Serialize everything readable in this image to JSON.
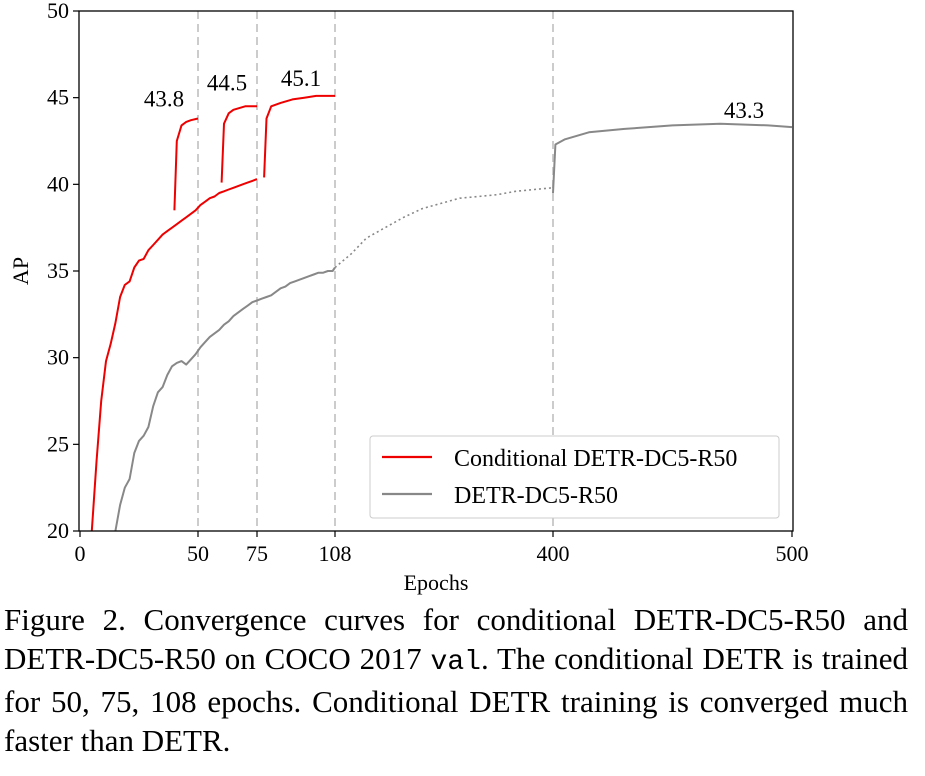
{
  "chart_data": {
    "type": "line",
    "xlabel": "Epochs",
    "ylabel": "AP",
    "xticks": [
      0,
      50,
      75,
      108,
      400,
      500
    ],
    "yticks": [
      20,
      25,
      30,
      35,
      40,
      45,
      50
    ],
    "xlim": [
      0,
      500
    ],
    "ylim": [
      20,
      50
    ],
    "x_scale": "piecewise linear (0-108 expanded, 108-500 compressed)",
    "grid": false,
    "vertical_dashed_lines_at": [
      50,
      75,
      108,
      400
    ],
    "legend_position": "lower-right",
    "series": [
      {
        "name": "Conditional DETR-DC5-R50",
        "color": "#ee0000",
        "segments": [
          {
            "points": [
              [
                5,
                20
              ],
              [
                7,
                24
              ],
              [
                9,
                27.5
              ],
              [
                11,
                29.8
              ],
              [
                13,
                30.8
              ],
              [
                15,
                32
              ],
              [
                17,
                33.5
              ],
              [
                19,
                34.2
              ],
              [
                21,
                34.4
              ],
              [
                23,
                35.2
              ],
              [
                25,
                35.6
              ],
              [
                27,
                35.7
              ],
              [
                29,
                36.2
              ],
              [
                31,
                36.5
              ],
              [
                33,
                36.8
              ],
              [
                35,
                37.1
              ],
              [
                37,
                37.3
              ],
              [
                39,
                37.5
              ],
              [
                41,
                37.7
              ],
              [
                43,
                37.9
              ],
              [
                45,
                38.1
              ],
              [
                47,
                38.3
              ],
              [
                49,
                38.5
              ],
              [
                51,
                38.8
              ],
              [
                53,
                39
              ],
              [
                55,
                39.2
              ],
              [
                57,
                39.3
              ],
              [
                59,
                39.5
              ],
              [
                61,
                39.6
              ],
              [
                63,
                39.7
              ],
              [
                65,
                39.8
              ],
              [
                67,
                39.9
              ],
              [
                69,
                40
              ],
              [
                71,
                40.1
              ],
              [
                73,
                40.2
              ],
              [
                75,
                40.3
              ]
            ]
          },
          {
            "points": [
              [
                40,
                38.5
              ],
              [
                41,
                42.5
              ],
              [
                43,
                43.4
              ],
              [
                45,
                43.6
              ],
              [
                47,
                43.7
              ],
              [
                50,
                43.8
              ]
            ]
          },
          {
            "points": [
              [
                60,
                40.1
              ],
              [
                61,
                43.5
              ],
              [
                63,
                44.1
              ],
              [
                65,
                44.3
              ],
              [
                70,
                44.5
              ],
              [
                75,
                44.5
              ]
            ]
          },
          {
            "points": [
              [
                78,
                40.4
              ],
              [
                79,
                43.8
              ],
              [
                81,
                44.5
              ],
              [
                85,
                44.7
              ],
              [
                90,
                44.9
              ],
              [
                95,
                45
              ],
              [
                100,
                45.1
              ],
              [
                108,
                45.1
              ]
            ]
          }
        ]
      },
      {
        "name": "DETR-DC5-R50",
        "color": "#888888",
        "segments": [
          {
            "points": [
              [
                15,
                20
              ],
              [
                17,
                21.5
              ],
              [
                19,
                22.5
              ],
              [
                21,
                23
              ],
              [
                23,
                24.5
              ],
              [
                25,
                25.2
              ],
              [
                27,
                25.5
              ],
              [
                29,
                26
              ],
              [
                31,
                27.2
              ],
              [
                33,
                28
              ],
              [
                35,
                28.3
              ],
              [
                37,
                29
              ],
              [
                39,
                29.5
              ],
              [
                41,
                29.7
              ],
              [
                43,
                29.8
              ],
              [
                45,
                29.6
              ],
              [
                47,
                29.9
              ],
              [
                49,
                30.2
              ],
              [
                51,
                30.6
              ],
              [
                53,
                30.9
              ],
              [
                55,
                31.2
              ],
              [
                57,
                31.4
              ],
              [
                59,
                31.6
              ],
              [
                61,
                31.9
              ],
              [
                63,
                32.1
              ],
              [
                65,
                32.4
              ],
              [
                67,
                32.6
              ],
              [
                69,
                32.8
              ],
              [
                71,
                33
              ],
              [
                73,
                33.2
              ],
              [
                75,
                33.3
              ],
              [
                77,
                33.4
              ],
              [
                79,
                33.5
              ],
              [
                81,
                33.6
              ],
              [
                83,
                33.8
              ],
              [
                85,
                34
              ],
              [
                87,
                34.1
              ],
              [
                89,
                34.3
              ],
              [
                91,
                34.4
              ],
              [
                93,
                34.5
              ],
              [
                95,
                34.6
              ],
              [
                97,
                34.7
              ],
              [
                99,
                34.8
              ],
              [
                101,
                34.9
              ],
              [
                103,
                34.9
              ],
              [
                105,
                35
              ],
              [
                107,
                35
              ],
              [
                108,
                35.2
              ]
            ]
          },
          {
            "points": [
              [
                108,
                35.2
              ],
              [
                130,
                36
              ],
              [
                150,
                36.9
              ],
              [
                175,
                37.5
              ],
              [
                200,
                38.1
              ],
              [
                225,
                38.6
              ],
              [
                250,
                38.9
              ],
              [
                275,
                39.2
              ],
              [
                300,
                39.3
              ],
              [
                325,
                39.4
              ],
              [
                350,
                39.6
              ],
              [
                375,
                39.7
              ],
              [
                399,
                39.8
              ]
            ],
            "style": "dotted"
          },
          {
            "points": [
              [
                400,
                39.5
              ],
              [
                401,
                42.3
              ],
              [
                405,
                42.6
              ],
              [
                415,
                43
              ],
              [
                430,
                43.2
              ],
              [
                450,
                43.4
              ],
              [
                470,
                43.5
              ],
              [
                490,
                43.4
              ],
              [
                500,
                43.3
              ]
            ]
          }
        ]
      }
    ],
    "annotations": [
      {
        "text": "43.8",
        "x": 50,
        "y": 43.8
      },
      {
        "text": "44.5",
        "x": 75,
        "y": 44.5
      },
      {
        "text": "45.1",
        "x": 108,
        "y": 45.1
      },
      {
        "text": "43.3",
        "x": 500,
        "y": 43.3
      }
    ]
  },
  "caption": {
    "p1": "Figure 2. Convergence curves for conditional DETR-DC5-R50 and DETR-DC5-R50 on COCO 2017 ",
    "code": "val",
    "p2": ". The conditional DETR is trained for 50, 75, 108 epochs. Conditional DETR training is converged much faster than DETR."
  }
}
